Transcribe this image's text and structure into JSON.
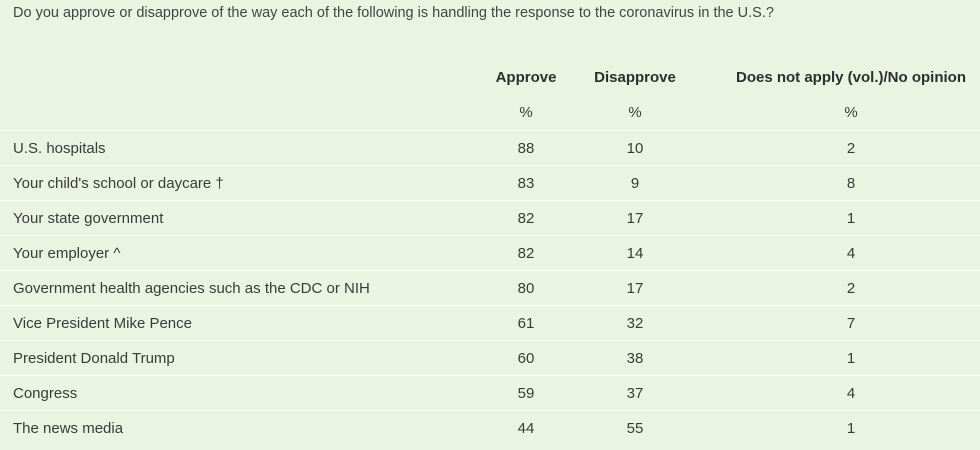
{
  "chart_data": {
    "type": "table",
    "title": "Do you approve or disapprove of the way each of the following is handling the response to the coronavirus in the U.S.?",
    "columns": [
      "Approve",
      "Disapprove",
      "Does not apply (vol.)/No opinion"
    ],
    "units": [
      "%",
      "%",
      "%"
    ],
    "rows": [
      {
        "label": "U.S. hospitals",
        "values": [
          "88",
          "10",
          "2"
        ]
      },
      {
        "label": "Your child's school or daycare †",
        "values": [
          "83",
          "9",
          "8"
        ]
      },
      {
        "label": "Your state government",
        "values": [
          "82",
          "17",
          "1"
        ]
      },
      {
        "label": "Your employer ^",
        "values": [
          "82",
          "14",
          "4"
        ]
      },
      {
        "label": "Government health agencies such as the CDC or NIH",
        "values": [
          "80",
          "17",
          "2"
        ]
      },
      {
        "label": "Vice President Mike Pence",
        "values": [
          "61",
          "32",
          "7"
        ]
      },
      {
        "label": "President Donald Trump",
        "values": [
          "60",
          "38",
          "1"
        ]
      },
      {
        "label": "Congress",
        "values": [
          "59",
          "37",
          "4"
        ]
      },
      {
        "label": "The news media",
        "values": [
          "44",
          "55",
          "1"
        ]
      }
    ]
  },
  "colors": {
    "background": "#eaf5e1",
    "row_divider": "#ffffff",
    "text": "#3a3a3a"
  }
}
